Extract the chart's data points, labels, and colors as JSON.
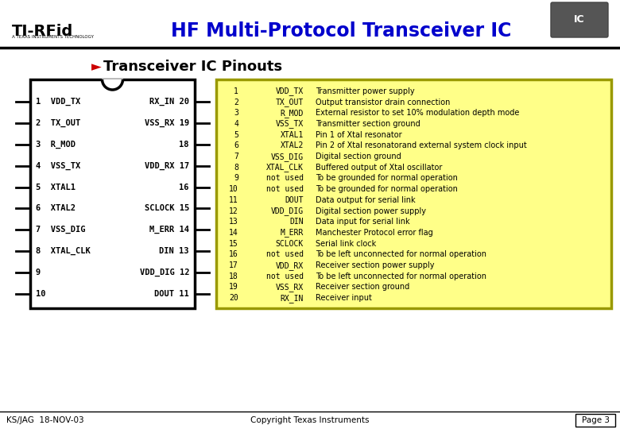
{
  "title": "HF Multi-Protocol Transceiver IC",
  "subtitle_arrow": "►",
  "subtitle_text": "Transceiver IC Pinouts",
  "bg_color": "#ffffff",
  "title_color": "#0000cc",
  "arrow_color": "#cc0000",
  "yellow_bg": "#ffff88",
  "yellow_border": "#999900",
  "left_pins": [
    {
      "num": 1,
      "name": "VDD_TX"
    },
    {
      "num": 2,
      "name": "TX_OUT"
    },
    {
      "num": 3,
      "name": "R_MOD"
    },
    {
      "num": 4,
      "name": "VSS_TX"
    },
    {
      "num": 5,
      "name": "XTAL1"
    },
    {
      "num": 6,
      "name": "XTAL2"
    },
    {
      "num": 7,
      "name": "VSS_DIG"
    },
    {
      "num": 8,
      "name": "XTAL_CLK"
    },
    {
      "num": 9,
      "name": ""
    },
    {
      "num": 10,
      "name": ""
    }
  ],
  "right_pins": [
    {
      "num": 20,
      "name": "RX_IN"
    },
    {
      "num": 19,
      "name": "VSS_RX"
    },
    {
      "num": 18,
      "name": ""
    },
    {
      "num": 17,
      "name": "VDD_RX"
    },
    {
      "num": 16,
      "name": ""
    },
    {
      "num": 15,
      "name": "SCLOCK"
    },
    {
      "num": 14,
      "name": "M_ERR"
    },
    {
      "num": 13,
      "name": "DIN"
    },
    {
      "num": 12,
      "name": "VDD_DIG"
    },
    {
      "num": 11,
      "name": "DOUT"
    }
  ],
  "pin_descriptions": [
    {
      "num": 1,
      "pin": "VDD_TX",
      "desc": "Transmitter power supply"
    },
    {
      "num": 2,
      "pin": "TX_OUT",
      "desc": "Output transistor drain connection"
    },
    {
      "num": 3,
      "pin": "R_MOD",
      "desc": "External resistor to set 10% modulation depth mode"
    },
    {
      "num": 4,
      "pin": "VSS_TX",
      "desc": "Transmitter section ground"
    },
    {
      "num": 5,
      "pin": "XTAL1",
      "desc": "Pin 1 of Xtal resonator"
    },
    {
      "num": 6,
      "pin": "XTAL2",
      "desc": "Pin 2 of Xtal resonatorand external system clock input"
    },
    {
      "num": 7,
      "pin": "VSS_DIG",
      "desc": "Digital section ground"
    },
    {
      "num": 8,
      "pin": "XTAL_CLK",
      "desc": "Buffered output of Xtal oscillator"
    },
    {
      "num": 9,
      "pin": "not used",
      "desc": "To be grounded for normal operation"
    },
    {
      "num": 10,
      "pin": "not used",
      "desc": "To be grounded for normal operation"
    },
    {
      "num": 11,
      "pin": "DOUT",
      "desc": "Data output for serial link"
    },
    {
      "num": 12,
      "pin": "VDD_DIG",
      "desc": "Digital section power supply"
    },
    {
      "num": 13,
      "pin": "DIN",
      "desc": "Data input for serial link"
    },
    {
      "num": 14,
      "pin": "M_ERR",
      "desc": "Manchester Protocol error flag"
    },
    {
      "num": 15,
      "pin": "SCLOCK",
      "desc": "Serial link clock"
    },
    {
      "num": 16,
      "pin": "not used",
      "desc": "To be left unconnected for normal operation"
    },
    {
      "num": 17,
      "pin": "VDD_RX",
      "desc": "Receiver section power supply"
    },
    {
      "num": 18,
      "pin": "not used",
      "desc": "To be left unconnected for normal operation"
    },
    {
      "num": 19,
      "pin": "VSS_RX",
      "desc": "Receiver section ground"
    },
    {
      "num": 20,
      "pin": "RX_IN",
      "desc": "Receiver input"
    }
  ],
  "footer_left": "KS/JAG  18-NOV-03",
  "footer_center": "Copyright Texas Instruments",
  "footer_right": "Page 3"
}
